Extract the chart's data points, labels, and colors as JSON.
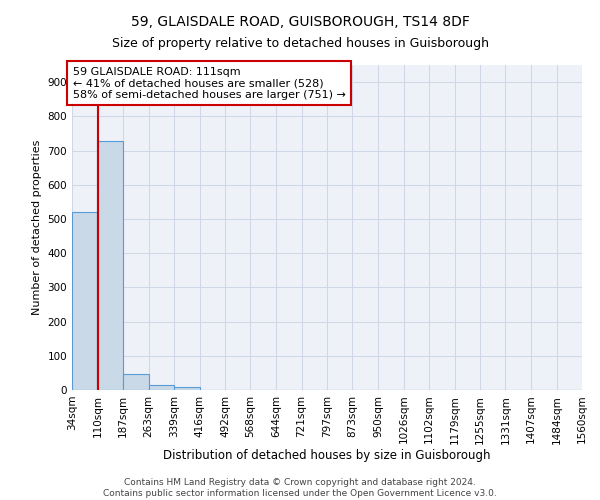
{
  "title1": "59, GLAISDALE ROAD, GUISBOROUGH, TS14 8DF",
  "title2": "Size of property relative to detached houses in Guisborough",
  "xlabel": "Distribution of detached houses by size in Guisborough",
  "ylabel": "Number of detached properties",
  "bar_edges": [
    34,
    110,
    187,
    263,
    339,
    416,
    492,
    568,
    644,
    721,
    797,
    873,
    950,
    1026,
    1102,
    1179,
    1255,
    1331,
    1407,
    1484,
    1560
  ],
  "bar_heights": [
    520,
    728,
    47,
    14,
    8,
    0,
    0,
    0,
    0,
    0,
    0,
    0,
    0,
    0,
    0,
    0,
    0,
    0,
    0,
    0
  ],
  "bar_color": "#c9d9e8",
  "bar_edge_color": "#5b9bd5",
  "bar_linewidth": 0.8,
  "property_size": 111,
  "property_line_color": "#cc0000",
  "annotation_text": "59 GLAISDALE ROAD: 111sqm\n← 41% of detached houses are smaller (528)\n58% of semi-detached houses are larger (751) →",
  "annotation_box_color": "#cc0000",
  "annotation_text_color": "#000000",
  "ylim": [
    0,
    950
  ],
  "yticks": [
    0,
    100,
    200,
    300,
    400,
    500,
    600,
    700,
    800,
    900
  ],
  "grid_color": "#d0d8e8",
  "background_color": "#eef2f8",
  "footnote": "Contains HM Land Registry data © Crown copyright and database right 2024.\nContains public sector information licensed under the Open Government Licence v3.0.",
  "title1_fontsize": 10,
  "title2_fontsize": 9,
  "xlabel_fontsize": 8.5,
  "ylabel_fontsize": 8,
  "tick_fontsize": 7.5,
  "annotation_fontsize": 8,
  "footnote_fontsize": 6.5
}
